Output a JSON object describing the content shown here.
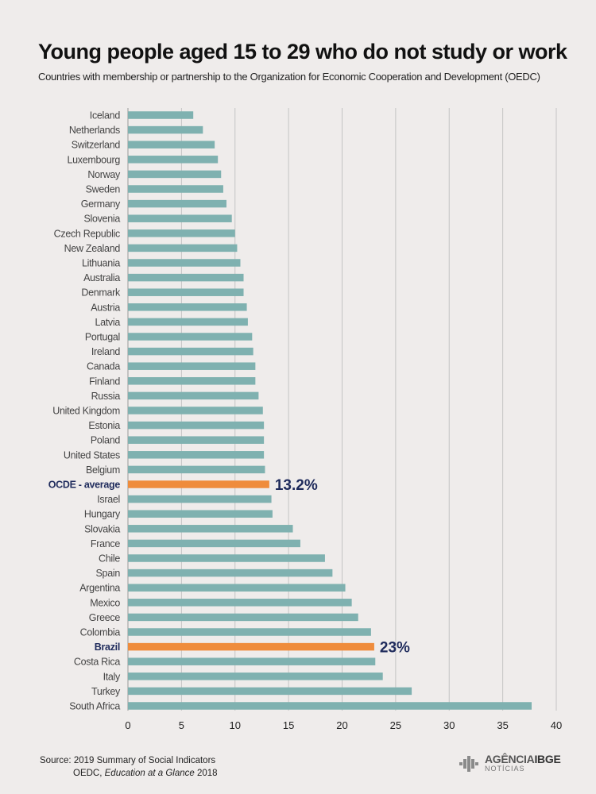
{
  "header": {
    "title": "Young people aged 15 to 29 who do not study or work",
    "subtitle": "Countries with membership or partnership to the Organization for Economic Cooperation and Development (OEDC)"
  },
  "colors": {
    "bar": "#7fb1b0",
    "highlight": "#ef8c3c",
    "highlight_text": "#1f2b5c",
    "grid": "#c4c4c4"
  },
  "chart_data": {
    "type": "bar",
    "orientation": "horizontal",
    "categories": [
      "Iceland",
      "Netherlands",
      "Switzerland",
      "Luxembourg",
      "Norway",
      "Sweden",
      "Germany",
      "Slovenia",
      "Czech Republic",
      "New Zealand",
      "Lithuania",
      "Australia",
      "Denmark",
      "Austria",
      "Latvia",
      "Portugal",
      "Ireland",
      "Canada",
      "Finland",
      "Russia",
      "United Kingdom",
      "Estonia",
      "Poland",
      "United States",
      "Belgium",
      "OCDE - average",
      "Israel",
      "Hungary",
      "Slovakia",
      "France",
      "Chile",
      "Spain",
      "Argentina",
      "Mexico",
      "Greece",
      "Colombia",
      "Brazil",
      "Costa Rica",
      "Italy",
      "Turkey",
      "South Africa"
    ],
    "values": [
      6.1,
      7.0,
      8.1,
      8.4,
      8.7,
      8.9,
      9.2,
      9.7,
      10.0,
      10.2,
      10.5,
      10.8,
      10.8,
      11.1,
      11.2,
      11.6,
      11.7,
      11.9,
      11.9,
      12.2,
      12.6,
      12.7,
      12.7,
      12.7,
      12.8,
      13.2,
      13.4,
      13.5,
      15.4,
      16.1,
      18.4,
      19.1,
      20.3,
      20.9,
      21.5,
      22.7,
      23.0,
      23.1,
      23.8,
      26.5,
      37.7
    ],
    "highlighted": [
      "OCDE - average",
      "Brazil"
    ],
    "annotations": [
      {
        "category": "OCDE - average",
        "text": "13.2%"
      },
      {
        "category": "Brazil",
        "text": "23%"
      }
    ],
    "xlim": [
      0,
      40
    ],
    "xticks": [
      0,
      5,
      10,
      15,
      20,
      25,
      30,
      35,
      40
    ],
    "grid": true,
    "title": "Young people aged 15 to 29 who do not study or work",
    "xlabel": "",
    "ylabel": ""
  },
  "footer": {
    "source_line1": "Source: 2019 Summary of Social Indicators",
    "source_line2_prefix": "OEDC, ",
    "source_line2_italic": "Education at a Glance",
    "source_line2_suffix": " 2018",
    "brand_word1": "AGÊNCIA",
    "brand_word2": "IBGE",
    "brand_sub": "NOTÍCIAS"
  }
}
